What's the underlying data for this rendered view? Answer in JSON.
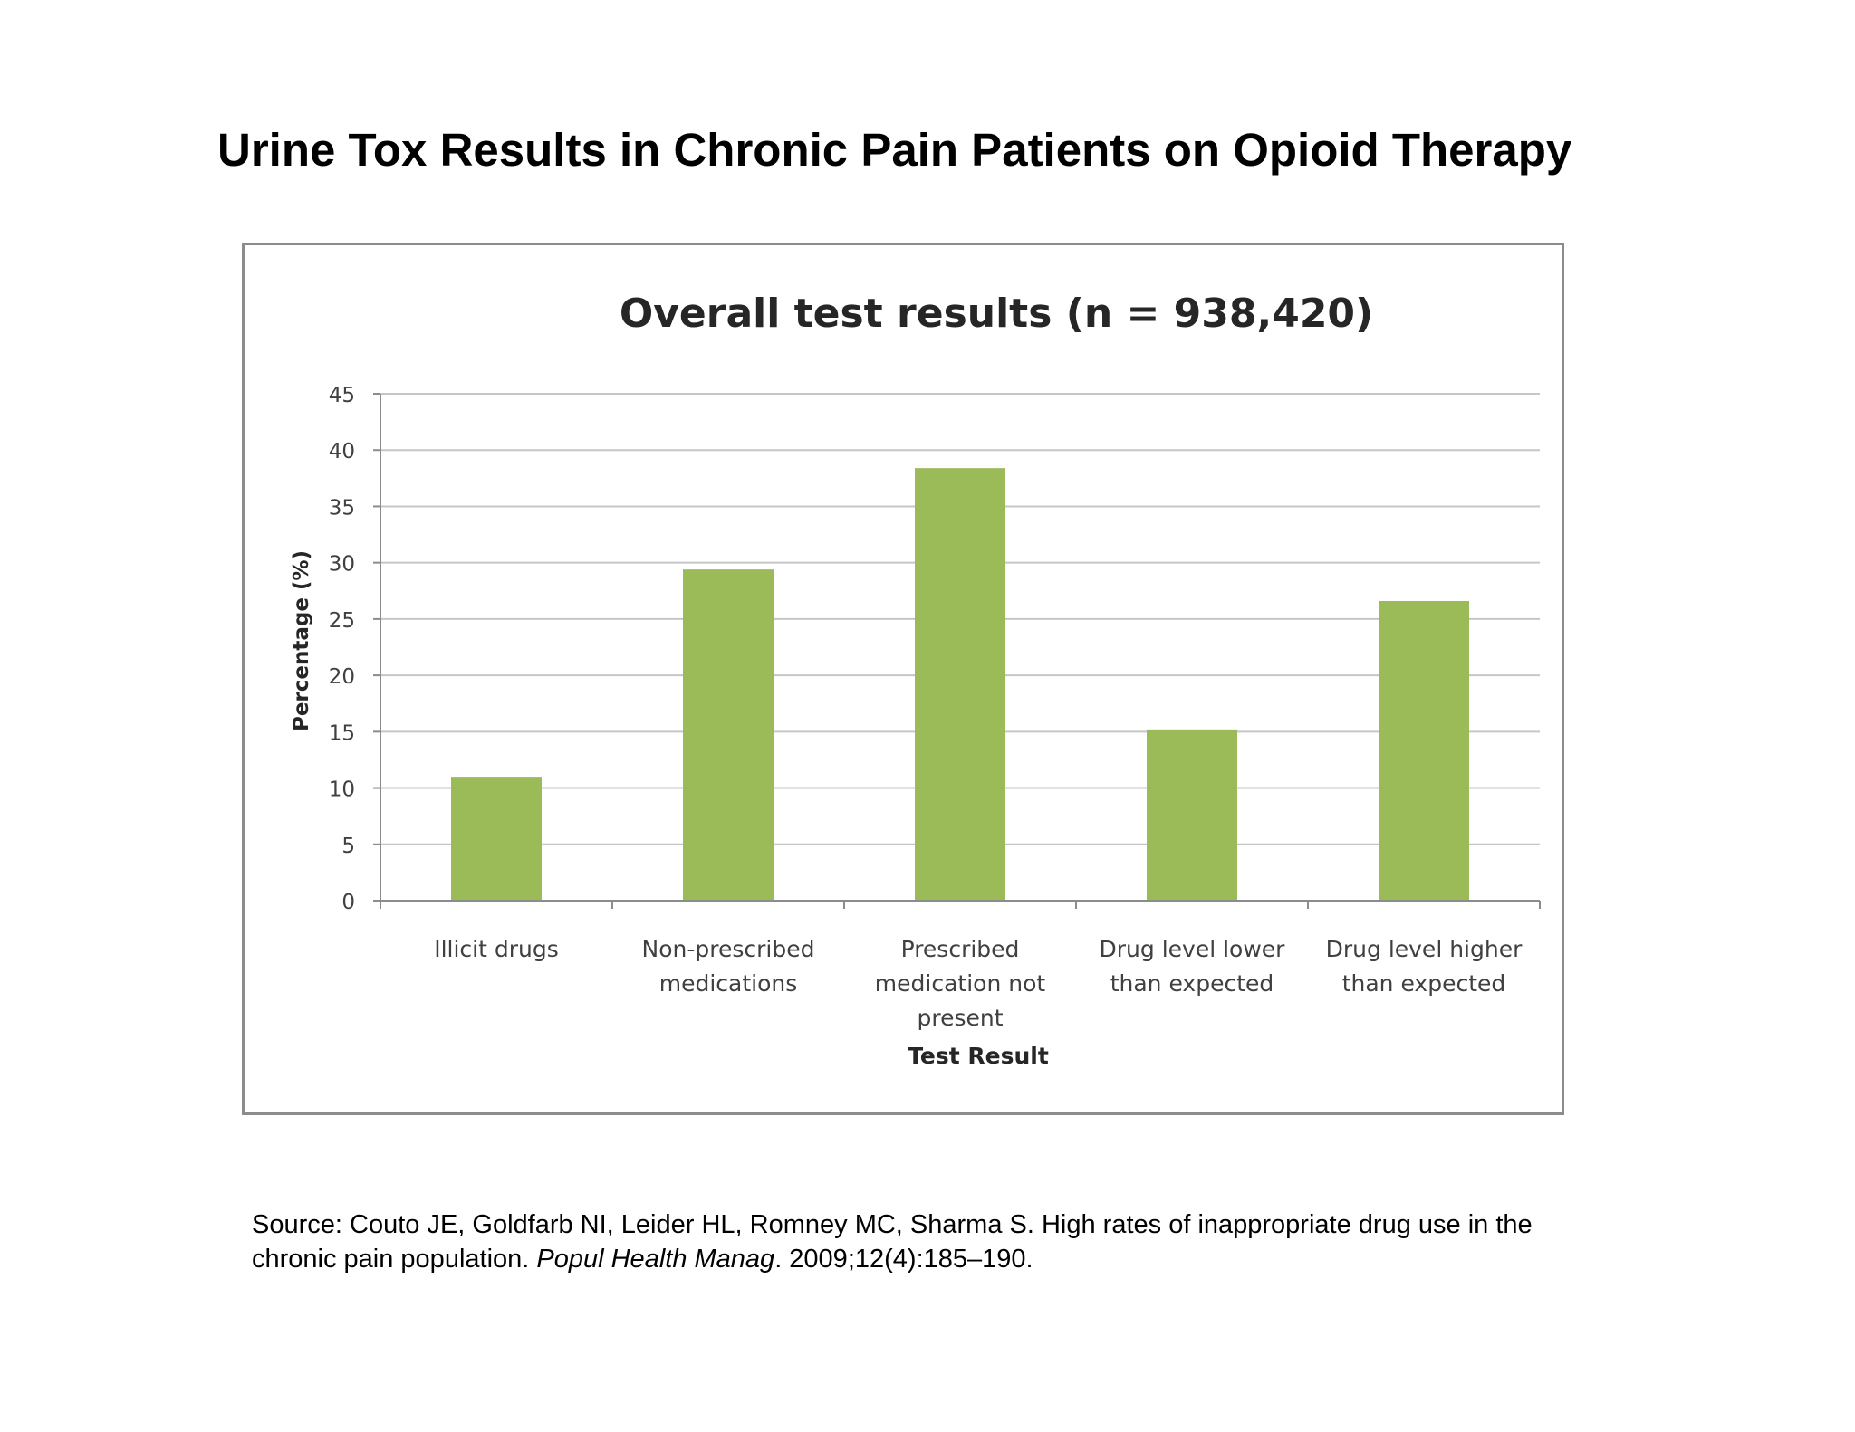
{
  "slide": {
    "title": "Urine Tox Results in Chronic Pain Patients on Opioid Therapy"
  },
  "chart_data": {
    "type": "bar",
    "title": "Overall test results (n = 938,420)",
    "xlabel": "Test Result",
    "ylabel": "Percentage (%)",
    "ylim": [
      0,
      45
    ],
    "yticks": [
      0,
      5,
      10,
      15,
      20,
      25,
      30,
      35,
      40,
      45
    ],
    "grid": true,
    "legend": "none",
    "categories": [
      "Illicit drugs",
      "Non-prescribed medications",
      "Prescribed medication not present",
      "Drug level lower than expected",
      "Drug level higher than expected"
    ],
    "category_label_lines": [
      [
        "Illicit drugs"
      ],
      [
        "Non-prescribed",
        "medications"
      ],
      [
        "Prescribed",
        "medication not",
        "present"
      ],
      [
        "Drug level lower",
        "than expected"
      ],
      [
        "Drug level higher",
        "than expected"
      ]
    ],
    "values": [
      11,
      29.4,
      38.4,
      15.2,
      26.6
    ],
    "colors": {
      "bar": "#9bbb59",
      "grid": "#c6c6c6",
      "axis": "#8c8c8c",
      "text": "#404040"
    }
  },
  "source": {
    "prefix": "Source: Couto JE, Goldfarb NI, Leider HL, Romney MC, Sharma S. High rates of inappropriate drug use in the chronic pain population. ",
    "journal": "Popul Health Manag",
    "suffix": ". 2009;12(4):185–190."
  }
}
